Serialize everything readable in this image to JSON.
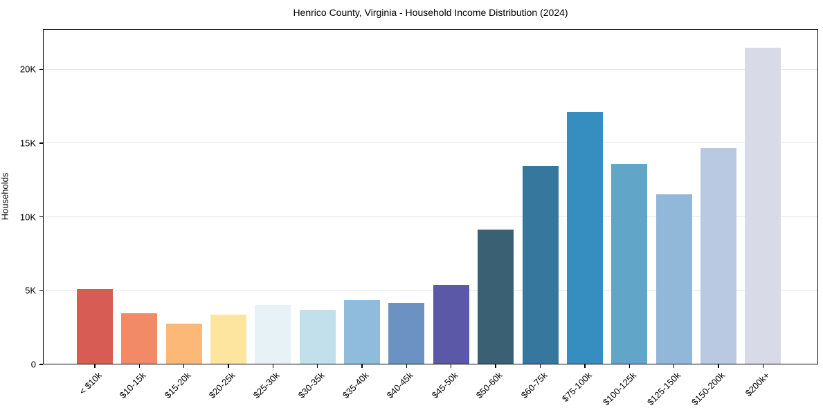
{
  "chart_data": {
    "type": "bar",
    "title": "Henrico County, Virginia - Household Income Distribution (2024)",
    "xlabel": "",
    "ylabel": "Households",
    "categories": [
      "< $10k",
      "$10-15k",
      "$15-20k",
      "$20-25k",
      "$25-30k",
      "$30-35k",
      "$35-40k",
      "$40-45k",
      "$45-50k",
      "$50-60k",
      "$60-75k",
      "$75-100k",
      "$100-125k",
      "$125-150k",
      "$150-200k",
      "$200k+"
    ],
    "values": [
      5100,
      3480,
      2760,
      3380,
      4030,
      3720,
      4360,
      4170,
      5370,
      9150,
      13430,
      17090,
      13590,
      11510,
      14680,
      21480
    ],
    "bar_colors": [
      "#d65c54",
      "#f28a68",
      "#fcb877",
      "#fde5a0",
      "#e7f2f6",
      "#c1e0eb",
      "#8fbcdc",
      "#6b92c3",
      "#5a58a7",
      "#3a6173",
      "#36789d",
      "#368dbf",
      "#61a5c9",
      "#92b8d9",
      "#b9c9e1",
      "#d8dae8"
    ],
    "ylim": [
      0,
      22730
    ],
    "yticks": [
      {
        "value": 0,
        "label": "0"
      },
      {
        "value": 5000,
        "label": "5K"
      },
      {
        "value": 10000,
        "label": "10K"
      },
      {
        "value": 15000,
        "label": "15K"
      },
      {
        "value": 20000,
        "label": "20K"
      }
    ],
    "grid": "horizontal",
    "legend_position": "none",
    "colors": {
      "background": "#ffffff",
      "spine": "#000000",
      "gridline": "#e7e7e7",
      "text": "#000000"
    }
  }
}
